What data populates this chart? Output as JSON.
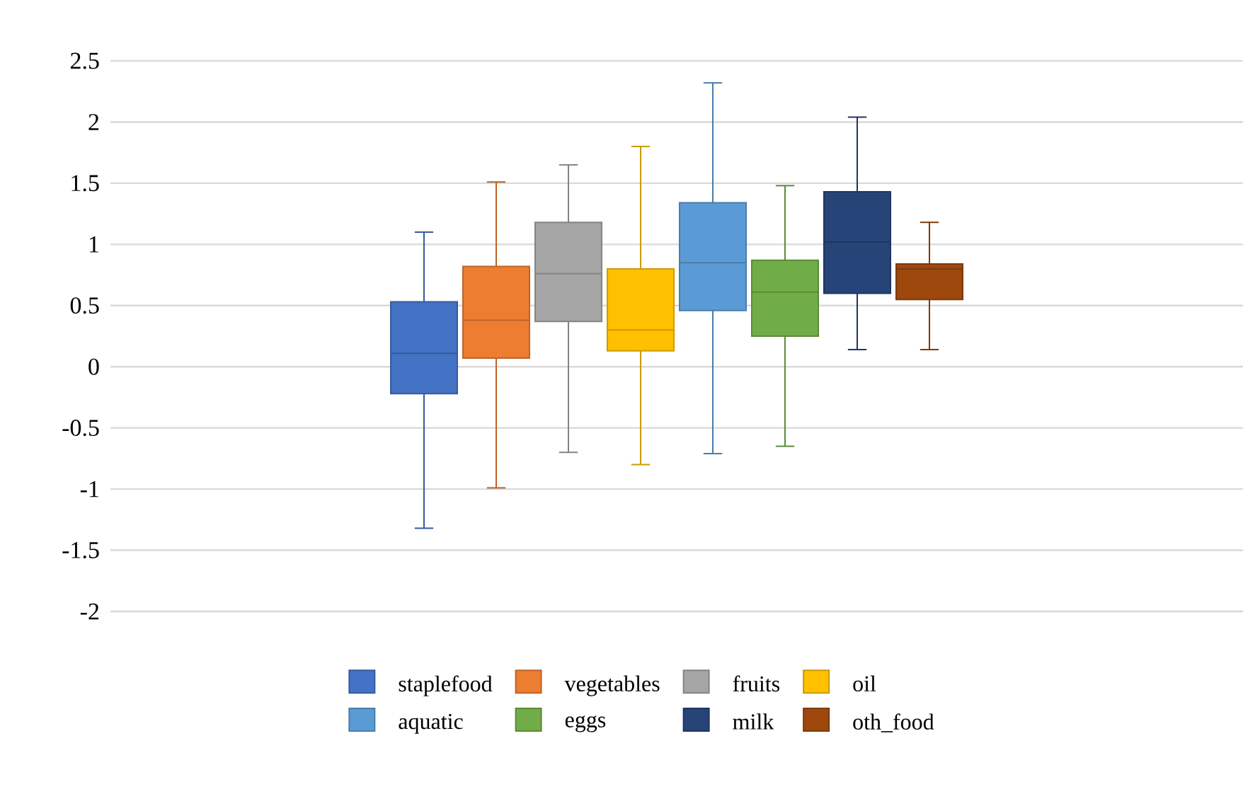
{
  "chart_data": {
    "type": "box",
    "categories": [
      null
    ],
    "series": [
      {
        "name": "staplefood",
        "color": "#4472c4",
        "boxes": [
          {
            "low": -1.32,
            "q1": -0.22,
            "median": 0.11,
            "q3": 0.53,
            "high": 1.1
          }
        ]
      },
      {
        "name": "vegetables",
        "color": "#ed7d31",
        "boxes": [
          {
            "low": -0.99,
            "q1": 0.07,
            "median": 0.38,
            "q3": 0.82,
            "high": 1.51
          }
        ]
      },
      {
        "name": "fruits",
        "color": "#a5a5a5",
        "boxes": [
          {
            "low": -0.7,
            "q1": 0.37,
            "median": 0.76,
            "q3": 1.18,
            "high": 1.65
          }
        ]
      },
      {
        "name": "oil",
        "color": "#ffc000",
        "boxes": [
          {
            "low": -0.8,
            "q1": 0.13,
            "median": 0.3,
            "q3": 0.8,
            "high": 1.8
          }
        ]
      },
      {
        "name": "aquatic",
        "color": "#5b9bd5",
        "boxes": [
          {
            "low": -0.71,
            "q1": 0.46,
            "median": 0.85,
            "q3": 1.34,
            "high": 2.32
          }
        ]
      },
      {
        "name": "eggs",
        "color": "#70ad47",
        "boxes": [
          {
            "low": -0.65,
            "q1": 0.25,
            "median": 0.61,
            "q3": 0.87,
            "high": 1.48
          }
        ]
      },
      {
        "name": "milk",
        "color": "#264478",
        "boxes": [
          {
            "low": 0.14,
            "q1": 0.6,
            "median": 1.02,
            "q3": 1.43,
            "high": 2.04
          }
        ]
      },
      {
        "name": "oth_food",
        "color": "#9e480e",
        "boxes": [
          {
            "low": 0.14,
            "q1": 0.55,
            "median": 0.8,
            "q3": 0.84,
            "high": 1.18
          }
        ]
      }
    ],
    "ylim": [
      -2,
      2.5
    ],
    "yticks": [
      -2,
      -1.5,
      -1,
      -0.5,
      0,
      0.5,
      1,
      1.5,
      2,
      2.5
    ],
    "grid": "y",
    "legend": "bottom",
    "tick_labels": "y"
  }
}
